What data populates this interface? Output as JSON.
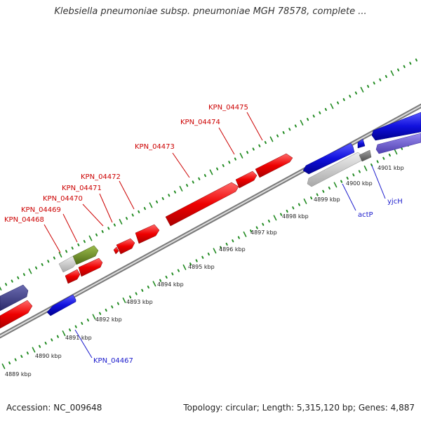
{
  "title": "Klebsiella pneumoniae subsp. pneumoniae MGH 78578, complete ...",
  "footer": {
    "accession": "Accession: NC_009648",
    "summary": "Topology: circular; Length: 5,315,120 bp; Genes: 4,887"
  },
  "colors": {
    "forward_gene": "#ee0000",
    "reverse_gene": "#1010dd",
    "forward_label": "#cc0000",
    "reverse_label": "#1a1acc",
    "tick_green": "#228b22",
    "backbone": "#808080",
    "grey_gene": "#c8c8c8",
    "olive_gene": "#6b8e23",
    "slate_gene": "#3c3c8c",
    "lavender_gene": "#7060d0"
  },
  "scale_labels": [
    "4889 kbp",
    "4890 kbp",
    "4891 kbp",
    "4892 kbp",
    "4893 kbp",
    "4894 kbp",
    "4895 kbp",
    "4896 kbp",
    "4897 kbp",
    "4898 kbp",
    "4899 kbp",
    "4900 kbp",
    "4901 kbp"
  ],
  "genes": [
    {
      "name": "KPN_04467",
      "strand": "-"
    },
    {
      "name": "KPN_04468",
      "strand": "+"
    },
    {
      "name": "KPN_04469",
      "strand": "+"
    },
    {
      "name": "KPN_04470",
      "strand": "+"
    },
    {
      "name": "KPN_04471",
      "strand": "+"
    },
    {
      "name": "KPN_04472",
      "strand": "+"
    },
    {
      "name": "KPN_04473",
      "strand": "+"
    },
    {
      "name": "KPN_04474",
      "strand": "+"
    },
    {
      "name": "KPN_04475",
      "strand": "+"
    },
    {
      "name": "actP",
      "strand": "-"
    },
    {
      "name": "yjcH",
      "strand": "-"
    }
  ]
}
